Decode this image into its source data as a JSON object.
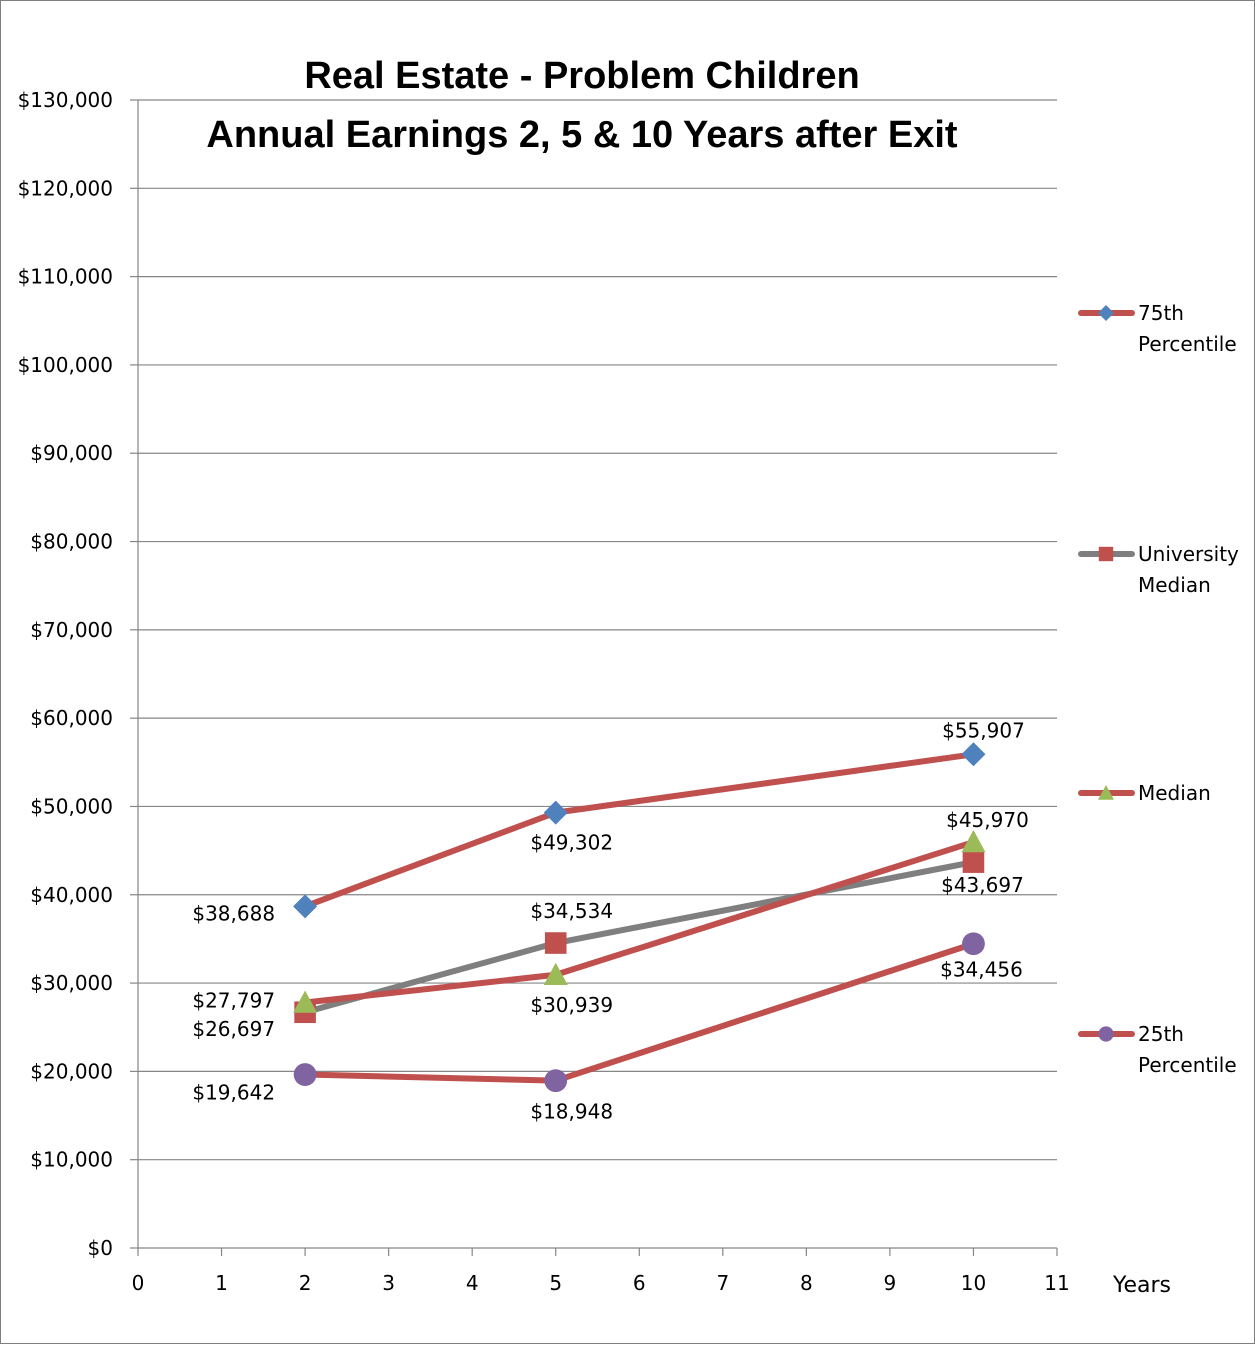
{
  "chart_data": {
    "type": "line",
    "title": "Real Estate - Problem Children",
    "subtitle": "Annual Earnings 2, 5 & 10 Years after Exit",
    "xlabel": "Years",
    "ylabel": "",
    "xlim": [
      0,
      11
    ],
    "ylim": [
      0,
      130000
    ],
    "x_ticks": [
      "0",
      "1",
      "2",
      "3",
      "4",
      "5",
      "6",
      "7",
      "8",
      "9",
      "10",
      "11"
    ],
    "y_ticks": [
      "$0",
      "$10,000",
      "$20,000",
      "$30,000",
      "$40,000",
      "$50,000",
      "$60,000",
      "$70,000",
      "$80,000",
      "$90,000",
      "$100,000",
      "$110,000",
      "$120,000",
      "$130,000"
    ],
    "grid": "horizontal",
    "legend_position": "right",
    "series": [
      {
        "name": "75th Percentile",
        "legend_lines": [
          "75th",
          "Percentile"
        ],
        "line_color": "#c0504d",
        "marker_color": "#4f81bd",
        "marker": "diamond",
        "x": [
          2,
          5,
          10
        ],
        "values": [
          38688,
          49302,
          55907
        ],
        "labels": [
          "$38,688",
          "$49,302",
          "$55,907"
        ]
      },
      {
        "name": "University Median",
        "legend_lines": [
          "University",
          "Median"
        ],
        "line_color": "#7f7f7f",
        "marker_color": "#c0504d",
        "marker": "square",
        "x": [
          2,
          5,
          10
        ],
        "values": [
          26697,
          34534,
          43697
        ],
        "labels": [
          "$26,697",
          "$34,534",
          "$43,697"
        ]
      },
      {
        "name": "Median",
        "legend_lines": [
          "Median"
        ],
        "line_color": "#c0504d",
        "marker_color": "#9bbb59",
        "marker": "triangle",
        "x": [
          2,
          5,
          10
        ],
        "values": [
          27797,
          30939,
          45970
        ],
        "labels": [
          "$27,797",
          "$30,939",
          "$45,970"
        ]
      },
      {
        "name": "25th Percentile",
        "legend_lines": [
          "25th",
          "Percentile"
        ],
        "line_color": "#c0504d",
        "marker_color": "#8064a2",
        "marker": "circle",
        "x": [
          2,
          5,
          10
        ],
        "values": [
          19642,
          18948,
          34456
        ],
        "labels": [
          "$19,642",
          "$18,948",
          "$34,456"
        ]
      }
    ]
  }
}
